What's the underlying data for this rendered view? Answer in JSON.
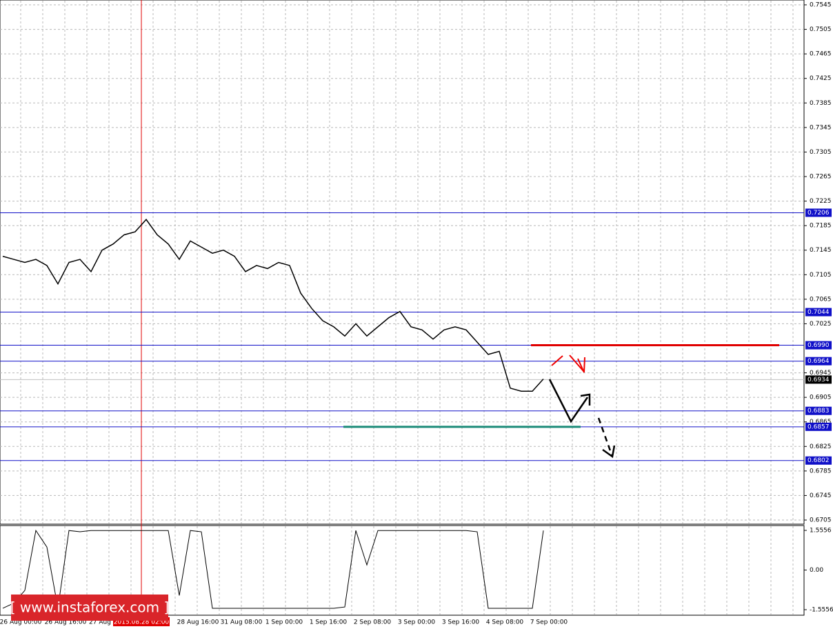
{
  "chart_data": {
    "type": "line",
    "ylim": [
      0.6705,
      0.7545
    ],
    "yticks": [
      0.7545,
      0.7505,
      0.7465,
      0.7425,
      0.7385,
      0.7345,
      0.7305,
      0.7265,
      0.7225,
      0.7185,
      0.7145,
      0.7105,
      0.7065,
      0.7025,
      0.6945,
      0.6905,
      0.6865,
      0.6825,
      0.6785,
      0.6745,
      0.6705
    ],
    "levels": [
      {
        "value": 0.7206,
        "label": "0.7206"
      },
      {
        "value": 0.7044,
        "label": "0.7044"
      },
      {
        "value": 0.699,
        "label": "0.6990"
      },
      {
        "value": 0.6964,
        "label": "0.6964"
      },
      {
        "value": 0.6883,
        "label": "0.6883"
      },
      {
        "value": 0.6857,
        "label": "0.6857"
      },
      {
        "value": 0.6802,
        "label": "0.6802"
      }
    ],
    "current": {
      "value": 0.6934,
      "label": "0.6934"
    },
    "x_labels": [
      "26 Aug 00:00",
      "26 Aug 16:00",
      "27 Aug",
      "2015.08.28 02:00",
      "28 Aug 16:00",
      "31 Aug 08:00",
      "1 Sep 00:00",
      "1 Sep 16:00",
      "2 Sep 08:00",
      "3 Sep 00:00",
      "3 Sep 16:00",
      "4 Sep 08:00",
      "7 Sep 00:00"
    ],
    "series": [
      {
        "name": "price",
        "color": "#000000",
        "values": [
          0.7135,
          0.713,
          0.7125,
          0.713,
          0.712,
          0.709,
          0.7125,
          0.713,
          0.711,
          0.7145,
          0.7155,
          0.717,
          0.7175,
          0.7195,
          0.717,
          0.7155,
          0.713,
          0.716,
          0.715,
          0.714,
          0.7145,
          0.7135,
          0.711,
          0.712,
          0.7115,
          0.7125,
          0.712,
          0.7075,
          0.705,
          0.703,
          0.702,
          0.7005,
          0.7025,
          0.7005,
          0.702,
          0.7035,
          0.7045,
          0.702,
          0.7015,
          0.7,
          0.7015,
          0.702,
          0.7015,
          0.6995,
          0.6975,
          0.698,
          0.692,
          0.6915,
          0.6915,
          0.6935
        ]
      }
    ],
    "indicator": {
      "ylim": [
        -1.5556,
        1.5556
      ],
      "yticks": [
        1.5556,
        {
          "value": 0,
          "label": "0.00"
        },
        -1.5556
      ],
      "values": [
        -1.5,
        -1.3,
        -0.8,
        1.55,
        0.9,
        -1.5,
        1.55,
        1.5,
        1.55,
        1.55,
        1.55,
        1.55,
        1.55,
        1.55,
        1.55,
        1.55,
        -1.0,
        1.55,
        1.5,
        -1.5,
        -1.5,
        -1.5,
        -1.5,
        -1.5,
        -1.5,
        -1.5,
        -1.5,
        -1.5,
        -1.5,
        -1.5,
        -1.5,
        -1.45,
        1.55,
        0.2,
        1.55,
        1.55,
        1.55,
        1.55,
        1.55,
        1.55,
        1.55,
        1.55,
        1.55,
        1.5,
        -1.5,
        -1.5,
        -1.5,
        -1.5,
        -1.5,
        1.55
      ]
    },
    "watermark": "[ www.instaforex.com ]"
  }
}
